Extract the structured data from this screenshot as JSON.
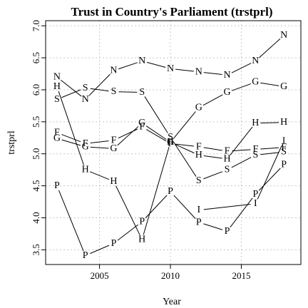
{
  "chart_data": {
    "type": "line",
    "title": "Trust in Country's Parliament (trstprl)",
    "xlabel": "Year",
    "ylabel": "trstprl",
    "xlim": [
      2001.2,
      2019.2
    ],
    "ylim": [
      3.27,
      7.08
    ],
    "xticks": [
      2005,
      2010,
      2015
    ],
    "yticks": [
      3.5,
      4.0,
      4.5,
      5.0,
      5.5,
      6.0,
      6.5,
      7.0
    ],
    "ytick_labels": [
      "3.5",
      "4.0",
      "4.5",
      "5.0",
      "5.5",
      "6.0",
      "6.5",
      "7.0"
    ],
    "grid": true,
    "series": [
      {
        "name": "N",
        "x": [
          2002,
          2004,
          2006,
          2008,
          2010,
          2012,
          2014,
          2016,
          2018
        ],
        "y": [
          6.2,
          5.85,
          6.3,
          6.45,
          6.33,
          6.28,
          6.23,
          6.45,
          6.85
        ]
      },
      {
        "name": "S",
        "x": [
          2002,
          2004,
          2006,
          2008,
          2010,
          2012,
          2014,
          2016,
          2018
        ],
        "y": [
          5.85,
          6.03,
          5.97,
          5.96,
          5.26,
          4.58,
          4.75,
          4.98,
          5.03
        ]
      },
      {
        "name": "H",
        "x": [
          2002,
          2004,
          2006,
          2008,
          2010,
          2012,
          2014,
          2016,
          2018
        ],
        "y": [
          6.05,
          4.75,
          4.57,
          3.66,
          5.18,
          4.98,
          4.92,
          5.48,
          5.49
        ]
      },
      {
        "name": "F",
        "x": [
          2002,
          2004,
          2006,
          2008,
          2010,
          2012,
          2014,
          2016,
          2018
        ],
        "y": [
          5.33,
          5.16,
          5.21,
          5.42,
          5.16,
          5.11,
          5.04,
          5.07,
          5.1
        ]
      },
      {
        "name": "G",
        "x": [
          2002,
          2004,
          2006,
          2008,
          2010,
          2012,
          2014,
          2016,
          2018
        ],
        "y": [
          5.24,
          5.11,
          5.08,
          5.48,
          5.18,
          5.72,
          5.96,
          6.12,
          6.05
        ]
      },
      {
        "name": "P",
        "x": [
          2002,
          2004,
          2006,
          2008,
          2010,
          2012,
          2014,
          2016,
          2018
        ],
        "y": [
          4.5,
          3.41,
          3.6,
          3.94,
          4.41,
          3.93,
          3.79,
          4.37,
          4.83
        ]
      },
      {
        "name": "I",
        "x": [
          2012,
          2016,
          2018
        ],
        "y": [
          4.12,
          4.22,
          5.2
        ]
      }
    ]
  }
}
